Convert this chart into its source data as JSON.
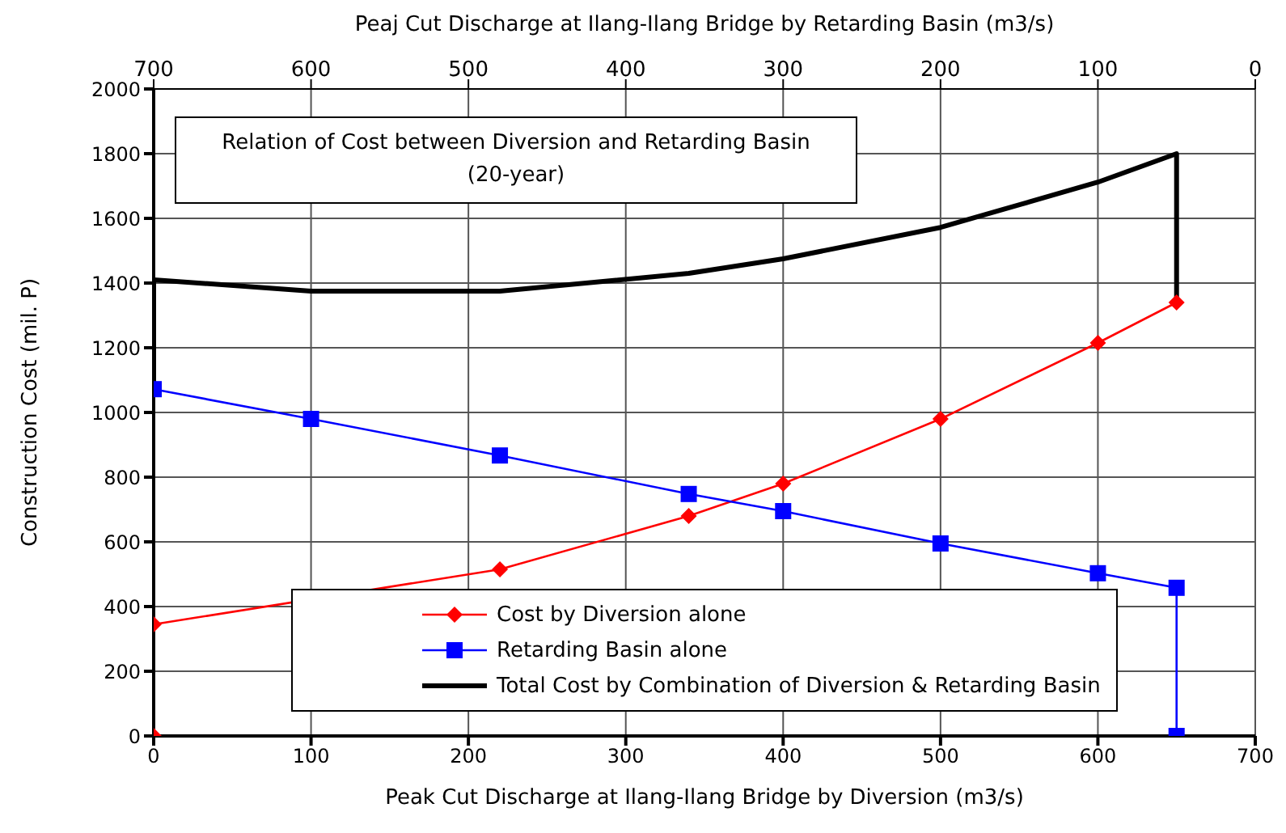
{
  "chart_data": {
    "type": "line",
    "title": "Relation of Cost between Diversion and Retarding Basin",
    "subtitle": "(20-year)",
    "xlabel": "Peak Cut Discharge at Ilang-Ilang Bridge by Diversion (m3/s)",
    "x2label": "Peaj Cut Discharge at Ilang-Ilang Bridge by Retarding Basin (m3/s)",
    "ylabel": "Construction Cost (mil. P)",
    "xlim": [
      0,
      700
    ],
    "xticks": [
      0,
      100,
      200,
      300,
      400,
      500,
      600,
      700
    ],
    "x2lim": [
      700,
      0
    ],
    "x2ticks": [
      700,
      600,
      500,
      400,
      300,
      200,
      100,
      0
    ],
    "ylim": [
      0,
      2000
    ],
    "yticks": [
      0,
      200,
      400,
      600,
      800,
      1000,
      1200,
      1400,
      1600,
      1800,
      2000
    ],
    "grid": true,
    "legend": "bottom",
    "line_style": "solid",
    "series": [
      {
        "name": "Cost by Diversion alone",
        "color": "#ff0000",
        "marker": "diamond",
        "x": [
          0,
          0,
          220,
          340,
          400,
          500,
          600,
          650
        ],
        "values": [
          0,
          345,
          515,
          680,
          780,
          980,
          1215,
          1340
        ]
      },
      {
        "name": "Retarding Basin alone",
        "color": "#0000ff",
        "marker": "square",
        "x": [
          0,
          100,
          220,
          340,
          400,
          500,
          600,
          650,
          650
        ],
        "values": [
          1072,
          980,
          867,
          748,
          695,
          595,
          503,
          458,
          0
        ]
      },
      {
        "name": "Total Cost by Combination of Diversion & Retarding Basin",
        "color": "#000000",
        "marker": "none",
        "x": [
          0,
          0,
          100,
          220,
          340,
          400,
          500,
          600,
          650,
          650
        ],
        "values": [
          1072,
          1410,
          1375,
          1375,
          1430,
          1475,
          1572,
          1712,
          1800,
          1340
        ]
      }
    ]
  }
}
